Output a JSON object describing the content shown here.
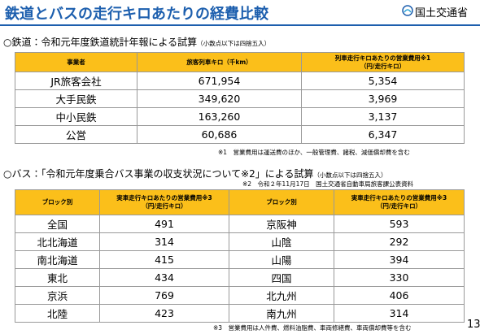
{
  "header": {
    "title": "鉄道とバスの走行キロあたりの経費比較",
    "logo": "国土交通省"
  },
  "rail": {
    "heading": "○鉄道：令和元年度鉄道統計年報による試算",
    "heading_note": "（小数点以下は四捨五入）",
    "table": {
      "columns": [
        [
          "事業者"
        ],
        [
          "旅客列車キロ（千km）"
        ],
        [
          "列車走行キロあたりの営業費用※1",
          "（円/走行キロ）"
        ]
      ],
      "rows": [
        [
          "JR旅客会社",
          "671,954",
          "5,354"
        ],
        [
          "大手民鉄",
          "349,620",
          "3,969"
        ],
        [
          "中小民鉄",
          "163,260",
          "3,137"
        ],
        [
          "公営",
          "60,686",
          "6,347"
        ]
      ]
    },
    "note": "※1　営業費用は運送費のほか、一般管理費、諸税、減価償却費を含む"
  },
  "bus": {
    "heading": "○バス：「令和元年度乗合バス事業の収支状況について※2」による試算",
    "heading_note": "（小数点以下は四捨五入）",
    "source": "※2　令和２年11月17日　国土交通省自動車局旅客課公表資料",
    "table": {
      "columns": [
        [
          "ブロック別"
        ],
        [
          "実車走行キロあたりの営業費用※3",
          "（円/走行キロ）"
        ],
        [
          "ブロック別"
        ],
        [
          "実車走行キロあたりの営業費用※3",
          "（円/走行キロ）"
        ]
      ],
      "rows": [
        [
          "全国",
          "491",
          "京阪神",
          "593"
        ],
        [
          "北北海道",
          "314",
          "山陰",
          "292"
        ],
        [
          "南北海道",
          "415",
          "山陽",
          "394"
        ],
        [
          "東北",
          "434",
          "四国",
          "330"
        ],
        [
          "京浜",
          "769",
          "北九州",
          "406"
        ],
        [
          "北陸",
          "423",
          "南九州",
          "314"
        ]
      ]
    },
    "note": "※3　営業費用は人件費、燃料油脂費、車両修繕費、車両償却費等を含む"
  },
  "page_number": "13"
}
